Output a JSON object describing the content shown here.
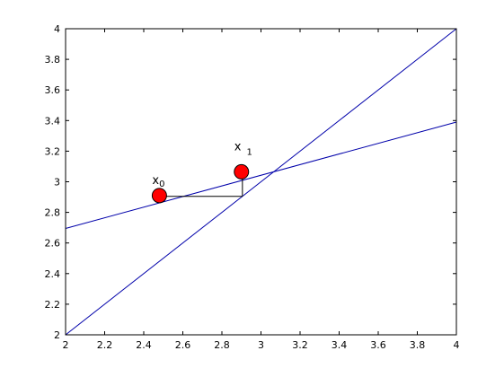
{
  "chart_data": {
    "type": "line",
    "title": "",
    "xlabel": "",
    "ylabel": "",
    "xlim": [
      2,
      4
    ],
    "ylim": [
      2,
      4
    ],
    "grid": false,
    "x_ticks": [
      "2",
      "2.2",
      "2.4",
      "2.6",
      "2.8",
      "3",
      "3.2",
      "3.4",
      "3.6",
      "3.8",
      "4"
    ],
    "y_ticks": [
      "2",
      "2.2",
      "2.4",
      "2.6",
      "2.8",
      "3",
      "3.2",
      "3.4",
      "3.6",
      "3.8",
      "4"
    ],
    "series": [
      {
        "x": [
          2,
          4
        ],
        "y": [
          2,
          4
        ],
        "color": "#0000aa"
      },
      {
        "x": [
          2,
          4
        ],
        "y": [
          2.695,
          3.39
        ],
        "color": "#0000aa"
      }
    ],
    "step_segments": [
      {
        "x": [
          2.48,
          2.905
        ],
        "y": [
          2.905,
          2.905
        ],
        "color": "#000000"
      },
      {
        "x": [
          2.905,
          2.905
        ],
        "y": [
          2.905,
          3.05
        ],
        "color": "#000000"
      }
    ],
    "points": [
      {
        "x": 2.48,
        "y": 2.91,
        "label": "x",
        "sub": "0",
        "color": "#ff0000"
      },
      {
        "x": 2.9,
        "y": 3.065,
        "label": "x",
        "sub": "1",
        "color": "#ff0000"
      }
    ]
  }
}
